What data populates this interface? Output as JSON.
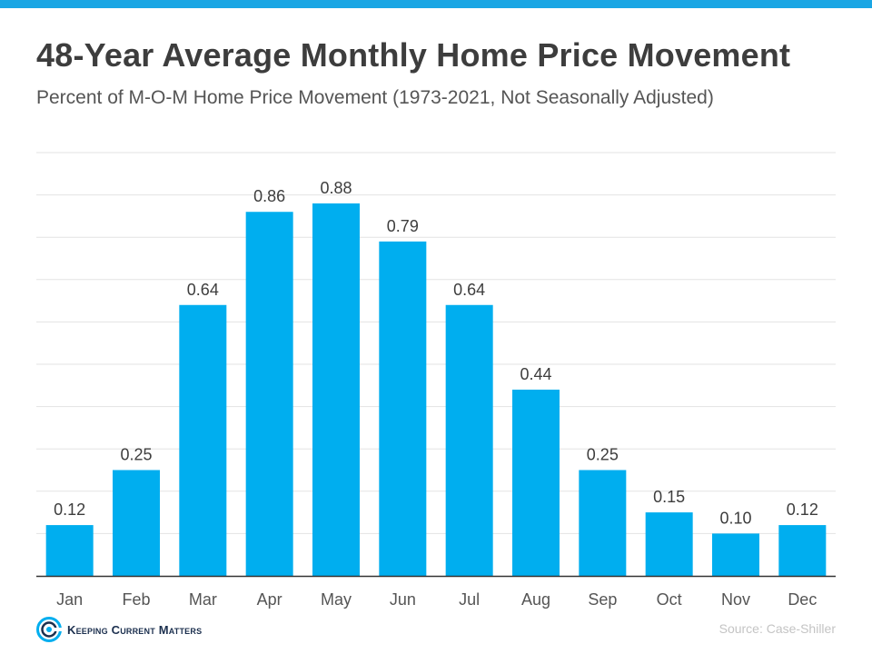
{
  "header": {
    "title": "48-Year Average Monthly Home Price Movement",
    "subtitle": "Percent of M-O-M Home Price Movement (1973-2021, Not Seasonally Adjusted)"
  },
  "chart_data": {
    "type": "bar",
    "title": "48-Year Average Monthly Home Price Movement",
    "subtitle": "Percent of M-O-M Home Price Movement (1973-2021, Not Seasonally Adjusted)",
    "categories": [
      "Jan",
      "Feb",
      "Mar",
      "Apr",
      "May",
      "Jun",
      "Jul",
      "Aug",
      "Sep",
      "Oct",
      "Nov",
      "Dec"
    ],
    "values": [
      0.12,
      0.25,
      0.64,
      0.86,
      0.88,
      0.79,
      0.64,
      0.44,
      0.25,
      0.15,
      0.1,
      0.12
    ],
    "value_labels": [
      "0.12",
      "0.25",
      "0.64",
      "0.86",
      "0.88",
      "0.79",
      "0.64",
      "0.44",
      "0.25",
      "0.15",
      "0.10",
      "0.12"
    ],
    "xlabel": "",
    "ylabel": "",
    "ylim": [
      0,
      1.0
    ],
    "gridlines": [
      0.1,
      0.2,
      0.3,
      0.4,
      0.5,
      0.6,
      0.7,
      0.8,
      0.9,
      1.0
    ],
    "grid": true,
    "legend": false,
    "bar_color": "#00aeef"
  },
  "footer": {
    "brand_name": "Keeping Current Matters",
    "source": "Source: Case-Shiller"
  },
  "colors": {
    "accent": "#1aa6e4",
    "bar": "#00aeef",
    "title": "#3d3d3d",
    "grid": "#e3e3e3",
    "axis": "#333333"
  },
  "icons": {
    "brand_logo": "kcm-swirl-logo-icon"
  }
}
